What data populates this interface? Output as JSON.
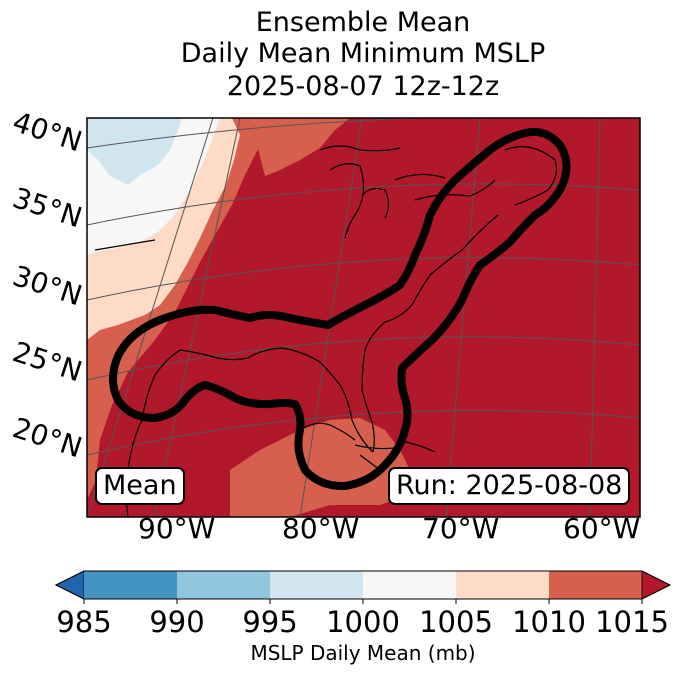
{
  "title": {
    "line1": "Ensemble Mean",
    "line2": "Daily Mean Minimum MSLP",
    "line3": "2025-08-07 12z-12z"
  },
  "map": {
    "lat_labels": [
      "40°N",
      "35°N",
      "30°N",
      "25°N",
      "20°N"
    ],
    "lon_labels": [
      "90°W",
      "80°W",
      "70°W",
      "60°W"
    ],
    "mean_box": "Mean",
    "run_box": "Run: 2025-08-08",
    "contour": "thick black closed contour along US east coast and Gulf of Mexico",
    "colors": {
      "c985_990": "#4393c3",
      "c990_995": "#92c5de",
      "c995_1000": "#d1e5f0",
      "c1000_1005": "#f7f7f7",
      "c1005_1010": "#fddbc7",
      "c1010_1015": "#d6604d",
      "c1015_plus": "#b2182b",
      "c_below_985": "#2166ac"
    }
  },
  "colorbar": {
    "ticks": [
      "985",
      "990",
      "995",
      "1000",
      "1005",
      "1010",
      "1015"
    ],
    "label": "MSLP Daily Mean (mb)",
    "extend": "both"
  }
}
